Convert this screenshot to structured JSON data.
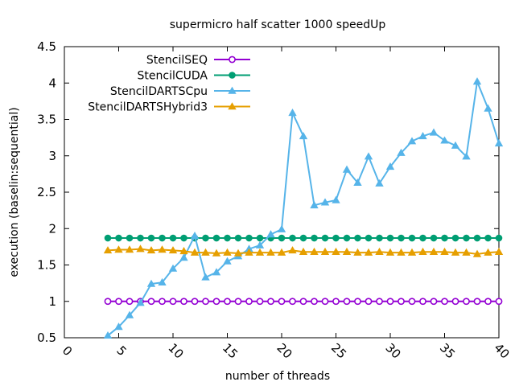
{
  "chart_data": {
    "type": "line",
    "title": "supermicro half scatter 1000 speedUp",
    "xlabel": "number of threads",
    "ylabel": "execution (baselin:sequential)",
    "xlim": [
      0,
      40
    ],
    "ylim": [
      0.5,
      4.5
    ],
    "xticks": [
      0,
      5,
      10,
      15,
      20,
      25,
      30,
      35,
      40
    ],
    "xtick_labels": [
      "0",
      "5",
      "10",
      "15",
      "20",
      "25",
      "30",
      "35",
      "40"
    ],
    "yticks": [
      0.5,
      1,
      1.5,
      2,
      2.5,
      3,
      3.5,
      4,
      4.5
    ],
    "ytick_labels": [
      "0.5",
      "1",
      "1.5",
      "2",
      "2.5",
      "3",
      "3.5",
      "4",
      "4.5"
    ],
    "grid": false,
    "legend_position": "top-left",
    "x": [
      4,
      5,
      6,
      7,
      8,
      9,
      10,
      11,
      12,
      13,
      14,
      15,
      16,
      17,
      18,
      19,
      20,
      21,
      22,
      23,
      24,
      25,
      26,
      27,
      28,
      29,
      30,
      31,
      32,
      33,
      34,
      35,
      36,
      37,
      38,
      39,
      40
    ],
    "series": [
      {
        "name": "StencilSEQ",
        "color": "#9400d3",
        "marker": "open-circle",
        "values": [
          1,
          1,
          1,
          1,
          1,
          1,
          1,
          1,
          1,
          1,
          1,
          1,
          1,
          1,
          1,
          1,
          1,
          1,
          1,
          1,
          1,
          1,
          1,
          1,
          1,
          1,
          1,
          1,
          1,
          1,
          1,
          1,
          1,
          1,
          1,
          1,
          1
        ]
      },
      {
        "name": "StencilCUDA",
        "color": "#009e73",
        "marker": "filled-circle",
        "values": [
          1.87,
          1.87,
          1.87,
          1.87,
          1.87,
          1.87,
          1.87,
          1.87,
          1.87,
          1.87,
          1.87,
          1.87,
          1.87,
          1.87,
          1.87,
          1.87,
          1.87,
          1.87,
          1.87,
          1.87,
          1.87,
          1.87,
          1.87,
          1.87,
          1.87,
          1.87,
          1.87,
          1.87,
          1.87,
          1.87,
          1.87,
          1.87,
          1.87,
          1.87,
          1.87,
          1.87,
          1.87
        ]
      },
      {
        "name": "StencilDARTSCpu",
        "color": "#56b4e9",
        "marker": "filled-triangle",
        "values": [
          0.53,
          0.65,
          0.81,
          0.98,
          1.24,
          1.26,
          1.45,
          1.6,
          1.9,
          1.33,
          1.4,
          1.55,
          1.62,
          1.72,
          1.77,
          1.92,
          1.99,
          3.59,
          3.27,
          2.32,
          2.36,
          2.39,
          2.81,
          2.63,
          2.99,
          2.62,
          2.85,
          3.04,
          3.2,
          3.27,
          3.32,
          3.21,
          3.14,
          2.99,
          4.02,
          3.65,
          3.17
        ]
      },
      {
        "name": "StencilDARTSHybrid3",
        "color": "#e69f00",
        "marker": "filled-triangle",
        "values": [
          1.7,
          1.71,
          1.71,
          1.72,
          1.7,
          1.71,
          1.7,
          1.69,
          1.67,
          1.67,
          1.66,
          1.67,
          1.66,
          1.67,
          1.67,
          1.67,
          1.67,
          1.7,
          1.68,
          1.68,
          1.68,
          1.68,
          1.68,
          1.67,
          1.67,
          1.68,
          1.67,
          1.67,
          1.67,
          1.68,
          1.68,
          1.68,
          1.67,
          1.67,
          1.65,
          1.67,
          1.68
        ]
      }
    ]
  }
}
